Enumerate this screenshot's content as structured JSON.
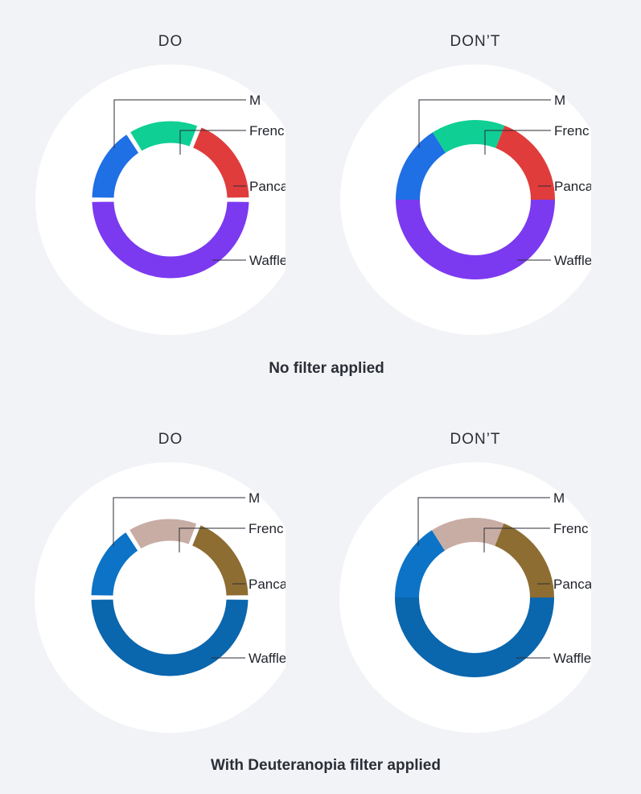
{
  "sections": [
    {
      "caption": "No filter applied",
      "panels": [
        {
          "title": "DO",
          "gaps": true
        },
        {
          "title": "DON’T",
          "gaps": false
        }
      ],
      "colors": [
        "#7b3af0",
        "#1f6fe5",
        "#0fcf95",
        "#e03c3c"
      ]
    },
    {
      "caption": "With Deuteranopia filter applied",
      "panels": [
        {
          "title": "DO",
          "gaps": true
        },
        {
          "title": "DON’T",
          "gaps": false
        }
      ],
      "colors": [
        "#0a66ad",
        "#0c73c6",
        "#c8ada5",
        "#8e6d33"
      ]
    }
  ],
  "chart_data": {
    "type": "pie",
    "categories": [
      "Waffle",
      "Pancake",
      "French toast",
      "Muffin"
    ],
    "values": [
      50,
      16,
      15,
      19
    ],
    "visible_labels": [
      "Waffle",
      "Pancake",
      "Frenc",
      "M"
    ]
  }
}
